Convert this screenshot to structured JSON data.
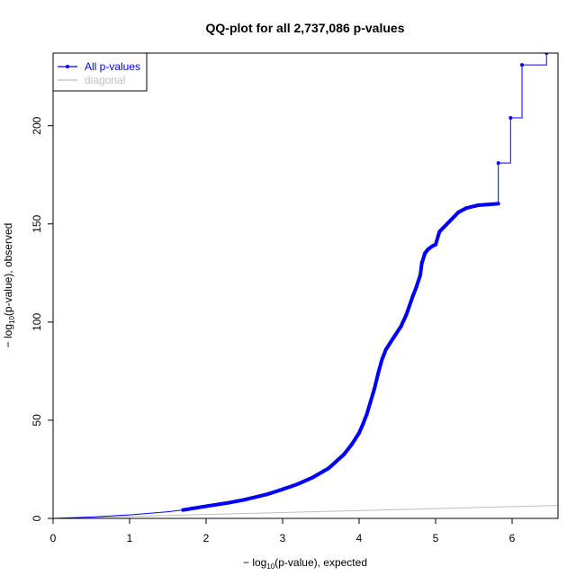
{
  "chart_data": {
    "type": "scatter",
    "title": "QQ-plot for all 2,737,086 p-values",
    "xlabel": {
      "prefix": "− log",
      "sub": "10",
      "suffix": "(p-value), expected"
    },
    "ylabel": {
      "prefix": "− log",
      "sub": "10",
      "suffix": "(p-value), observed"
    },
    "xlim": [
      0,
      6.6
    ],
    "ylim": [
      0,
      237
    ],
    "x_ticks": [
      0,
      1,
      2,
      3,
      4,
      5,
      6
    ],
    "y_ticks": [
      0,
      50,
      100,
      150,
      200
    ],
    "grid": false,
    "legend_position": "top-left",
    "series": [
      {
        "name": "All p-values",
        "color": "#0000ff",
        "style": "line-with-points",
        "continuous_points": [
          [
            0,
            0
          ],
          [
            0.5,
            0.7
          ],
          [
            1.0,
            1.8
          ],
          [
            1.5,
            3.4
          ],
          [
            1.7,
            4.3
          ],
          [
            2.0,
            6.2
          ],
          [
            2.3,
            8.0
          ],
          [
            2.5,
            9.5
          ],
          [
            2.8,
            12.3
          ],
          [
            3.0,
            14.8
          ],
          [
            3.2,
            17.5
          ],
          [
            3.4,
            21.0
          ],
          [
            3.6,
            25.5
          ],
          [
            3.8,
            32.5
          ],
          [
            3.9,
            37.5
          ],
          [
            4.0,
            43.5
          ],
          [
            4.05,
            48.0
          ],
          [
            4.1,
            53.0
          ],
          [
            4.15,
            59.5
          ],
          [
            4.2,
            66.0
          ],
          [
            4.25,
            74.0
          ],
          [
            4.3,
            81.0
          ],
          [
            4.35,
            86.0
          ],
          [
            4.45,
            92.0
          ],
          [
            4.55,
            98.0
          ],
          [
            4.62,
            104.0
          ],
          [
            4.7,
            113.0
          ],
          [
            4.75,
            118.0
          ],
          [
            4.8,
            124.0
          ],
          [
            4.82,
            130.0
          ],
          [
            4.86,
            135.0
          ],
          [
            4.9,
            137.0
          ],
          [
            4.95,
            138.5
          ],
          [
            5.0,
            139.5
          ],
          [
            5.05,
            146.0
          ],
          [
            5.1,
            148.0
          ],
          [
            5.2,
            152.0
          ],
          [
            5.3,
            156.0
          ],
          [
            5.4,
            158.0
          ],
          [
            5.55,
            159.5
          ],
          [
            5.72,
            160.0
          ],
          [
            5.82,
            160.3
          ]
        ],
        "step_points": [
          [
            5.82,
            181.0
          ],
          [
            5.98,
            204.0
          ],
          [
            6.13,
            231.0
          ],
          [
            6.45,
            237.0
          ]
        ],
        "points_start_x": 1.7
      },
      {
        "name": "diagonal",
        "color": "#bebebe",
        "style": "line",
        "points": [
          [
            0,
            0
          ],
          [
            6.6,
            6.6
          ]
        ]
      }
    ]
  }
}
